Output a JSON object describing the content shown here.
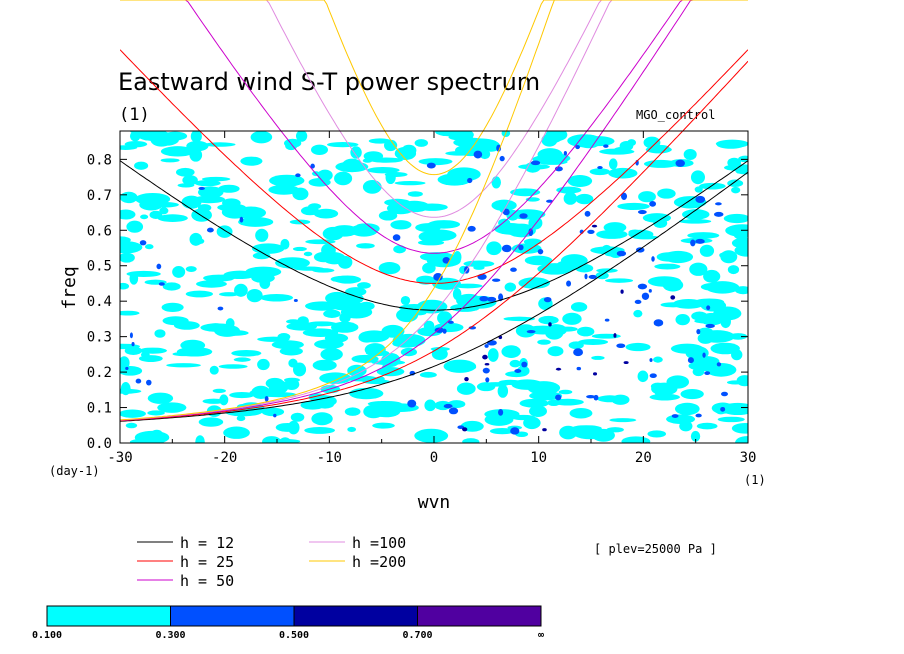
{
  "chart_data": {
    "type": "heatmap",
    "title": "Eastward wind S-T power spectrum",
    "subtitle": "(1)",
    "run_label": "MGO_control",
    "xlabel": "wvn",
    "ylabel": "freq",
    "x_unit": "(1)",
    "y_unit": "(day-1)",
    "xlim": [
      -30,
      30
    ],
    "ylim": [
      0,
      0.88
    ],
    "x_ticks": [
      -30,
      -20,
      -10,
      0,
      10,
      20,
      30
    ],
    "x_tick_labels": [
      "-30",
      "-20",
      "-10",
      "0",
      "10",
      "20",
      "30"
    ],
    "y_ticks": [
      0,
      0.1,
      0.2,
      0.3,
      0.4,
      0.5,
      0.6,
      0.7,
      0.8
    ],
    "y_tick_labels": [
      "0.0",
      "0.1",
      "0.2",
      "0.3",
      "0.4",
      "0.5",
      "0.6",
      "0.7",
      "0.8"
    ],
    "level_note": "[ plev=25000 Pa ]",
    "contour_levels": [
      "0.100",
      "0.300",
      "0.500",
      "0.700",
      "∞"
    ],
    "level_colors": [
      "#00ffff",
      "#0050ff",
      "#0000a0",
      "#5000a0"
    ],
    "dispersion_curves": [
      {
        "label": "h = 12",
        "h": 12,
        "color": "#000000",
        "modes": [
          "ig",
          "mrg"
        ]
      },
      {
        "label": "h = 25",
        "h": 25,
        "color": "#ff0000",
        "modes": [
          "ig",
          "mrg"
        ]
      },
      {
        "label": "h = 50",
        "h": 50,
        "color": "#cc00cc",
        "modes": [
          "ig",
          "mrg"
        ]
      },
      {
        "label": "h =100",
        "h": 100,
        "color": "#e08ce0",
        "modes": [
          "ig",
          "mrg"
        ]
      },
      {
        "label": "h =200",
        "h": 200,
        "color": "#ffc800",
        "modes": [
          "ig",
          "mrg"
        ]
      }
    ]
  }
}
